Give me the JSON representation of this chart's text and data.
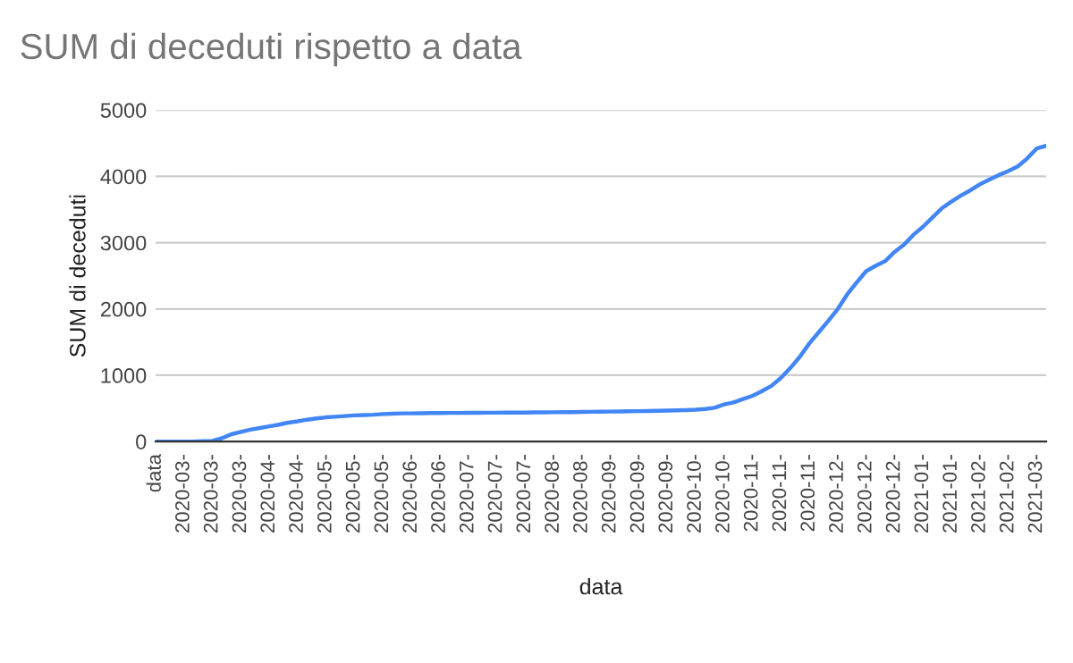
{
  "chart_data": {
    "type": "line",
    "title": "SUM di deceduti rispetto a data",
    "xlabel": "data",
    "ylabel": "SUM di deceduti",
    "categories": [
      "data",
      null,
      null,
      "2020-03-",
      null,
      null,
      "2020-03-",
      null,
      null,
      "2020-03-",
      null,
      null,
      "2020-04-",
      null,
      null,
      "2020-04-",
      null,
      null,
      "2020-05-",
      null,
      null,
      "2020-05-",
      null,
      null,
      "2020-05-",
      null,
      null,
      "2020-06-",
      null,
      null,
      "2020-06-",
      null,
      null,
      "2020-07-",
      null,
      null,
      "2020-07-",
      null,
      null,
      "2020-07-",
      null,
      null,
      "2020-08-",
      null,
      null,
      "2020-08-",
      null,
      null,
      "2020-09-",
      null,
      null,
      "2020-09-",
      null,
      null,
      "2020-09-",
      null,
      null,
      "2020-10-",
      null,
      null,
      "2020-10-",
      null,
      null,
      "2020-11-",
      null,
      null,
      "2020-11-",
      null,
      null,
      "2020-11-",
      null,
      null,
      "2020-12-",
      null,
      null,
      "2020-12-",
      null,
      null,
      "2020-12-",
      null,
      null,
      "2021-01-",
      null,
      null,
      "2021-01-",
      null,
      null,
      "2021-02-",
      null,
      null,
      "2021-02-",
      null,
      null,
      "2021-03-",
      null
    ],
    "series": [
      {
        "color": "#4285f4",
        "values": [
          0,
          0,
          0,
          0,
          0,
          5,
          10,
          50,
          110,
          145,
          180,
          205,
          230,
          255,
          285,
          305,
          330,
          350,
          365,
          375,
          385,
          395,
          400,
          405,
          415,
          420,
          425,
          425,
          428,
          430,
          430,
          432,
          432,
          433,
          434,
          435,
          435,
          436,
          437,
          438,
          440,
          441,
          442,
          443,
          445,
          447,
          449,
          450,
          452,
          455,
          457,
          459,
          461,
          463,
          466,
          470,
          474,
          480,
          490,
          510,
          560,
          590,
          640,
          690,
          760,
          840,
          960,
          1110,
          1280,
          1480,
          1650,
          1820,
          2000,
          2220,
          2400,
          2570,
          2650,
          2720,
          2860,
          2970,
          3120,
          3240,
          3380,
          3520,
          3620,
          3710,
          3790,
          3880,
          3950,
          4020,
          4080,
          4150,
          4270,
          4420,
          4460
        ]
      }
    ],
    "ylim": [
      0,
      5000
    ],
    "yticks": [
      0,
      1000,
      2000,
      3000,
      4000,
      5000
    ],
    "grid": "y",
    "legend": false,
    "marker": "none",
    "line_style": "solid"
  }
}
